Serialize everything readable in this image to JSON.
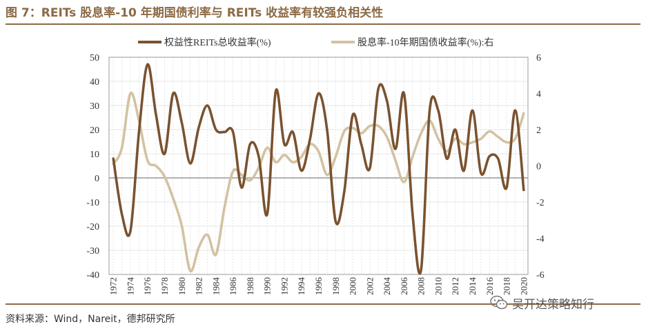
{
  "title": "图 7：REITs 股息率-10 年期国债利率与 REITs 收益率有较强负相关性",
  "source": "资料来源：Wind，Nareit，德邦研究所",
  "watermark": {
    "text": "吴开达策略知行",
    "icon": "wechat-icon"
  },
  "chart_data": {
    "type": "line",
    "x_ticks": [
      "1972",
      "1974",
      "1976",
      "1978",
      "1980",
      "1982",
      "1984",
      "1986",
      "1988",
      "1990",
      "1992",
      "1994",
      "1996",
      "1998",
      "2000",
      "2002",
      "2004",
      "2006",
      "2008",
      "2010",
      "2012",
      "2014",
      "2016",
      "2018",
      "2020"
    ],
    "xlim": [
      1971.5,
      2020.5
    ],
    "y_left": {
      "lim": [
        -40,
        50
      ],
      "ticks": [
        "-40",
        "-30",
        "-20",
        "-10",
        "0",
        "10",
        "20",
        "30",
        "40",
        "50"
      ]
    },
    "y_right": {
      "lim": [
        -6,
        6
      ],
      "ticks": [
        "-6",
        "-4",
        "-2",
        "0",
        "2",
        "4",
        "6"
      ]
    },
    "grid": true,
    "legend_position": "top-center",
    "series": [
      {
        "name": "权益性REITs总收益率(%)",
        "axis": "left",
        "color": "#7A5230",
        "x": [
          1972,
          1973,
          1974,
          1975,
          1976,
          1977,
          1978,
          1979,
          1980,
          1981,
          1982,
          1983,
          1984,
          1985,
          1986,
          1987,
          1988,
          1989,
          1990,
          1991,
          1992,
          1993,
          1994,
          1995,
          1996,
          1997,
          1998,
          1999,
          2000,
          2001,
          2002,
          2003,
          2004,
          2005,
          2006,
          2007,
          2008,
          2009,
          2010,
          2011,
          2012,
          2013,
          2014,
          2015,
          2016,
          2017,
          2018,
          2019,
          2020
        ],
        "y": [
          8,
          -15,
          -22,
          19,
          47,
          26,
          10,
          35,
          23,
          6,
          21,
          30,
          20,
          19,
          19,
          -4,
          14,
          9,
          -15,
          36,
          14,
          19,
          3,
          16,
          35,
          20,
          -18,
          -6,
          26,
          14,
          4,
          37,
          32,
          12,
          35,
          -15,
          -38,
          28,
          28,
          8,
          20,
          3,
          28,
          2,
          9,
          8,
          -4,
          28,
          -5
        ]
      },
      {
        "name": "股息率-10年期国债收益率(%):右",
        "axis": "right",
        "color": "#D2C2A2",
        "x": [
          1972,
          1973,
          1974,
          1975,
          1976,
          1977,
          1978,
          1979,
          1980,
          1981,
          1982,
          1983,
          1984,
          1985,
          1986,
          1987,
          1988,
          1989,
          1990,
          1991,
          1992,
          1993,
          1994,
          1995,
          1996,
          1997,
          1998,
          1999,
          2000,
          2001,
          2002,
          2003,
          2004,
          2005,
          2006,
          2007,
          2008,
          2009,
          2010,
          2011,
          2012,
          2013,
          2014,
          2015,
          2016,
          2017,
          2018,
          2019,
          2020
        ],
        "y": [
          0.1,
          1.0,
          4.0,
          2.5,
          0.3,
          0.0,
          -0.6,
          -1.8,
          -3.3,
          -5.8,
          -4.5,
          -3.8,
          -4.9,
          -2.3,
          -0.3,
          -0.5,
          -0.8,
          -0.1,
          1.0,
          0.2,
          0.6,
          0.2,
          0.5,
          1.2,
          0.8,
          -0.5,
          0.5,
          1.9,
          2.1,
          1.8,
          2.2,
          2.2,
          1.6,
          0.3,
          -0.9,
          0.5,
          1.8,
          2.5,
          1.5,
          0.8,
          1.5,
          1.2,
          1.3,
          1.5,
          1.9,
          1.6,
          1.3,
          1.5,
          2.9
        ]
      }
    ]
  }
}
